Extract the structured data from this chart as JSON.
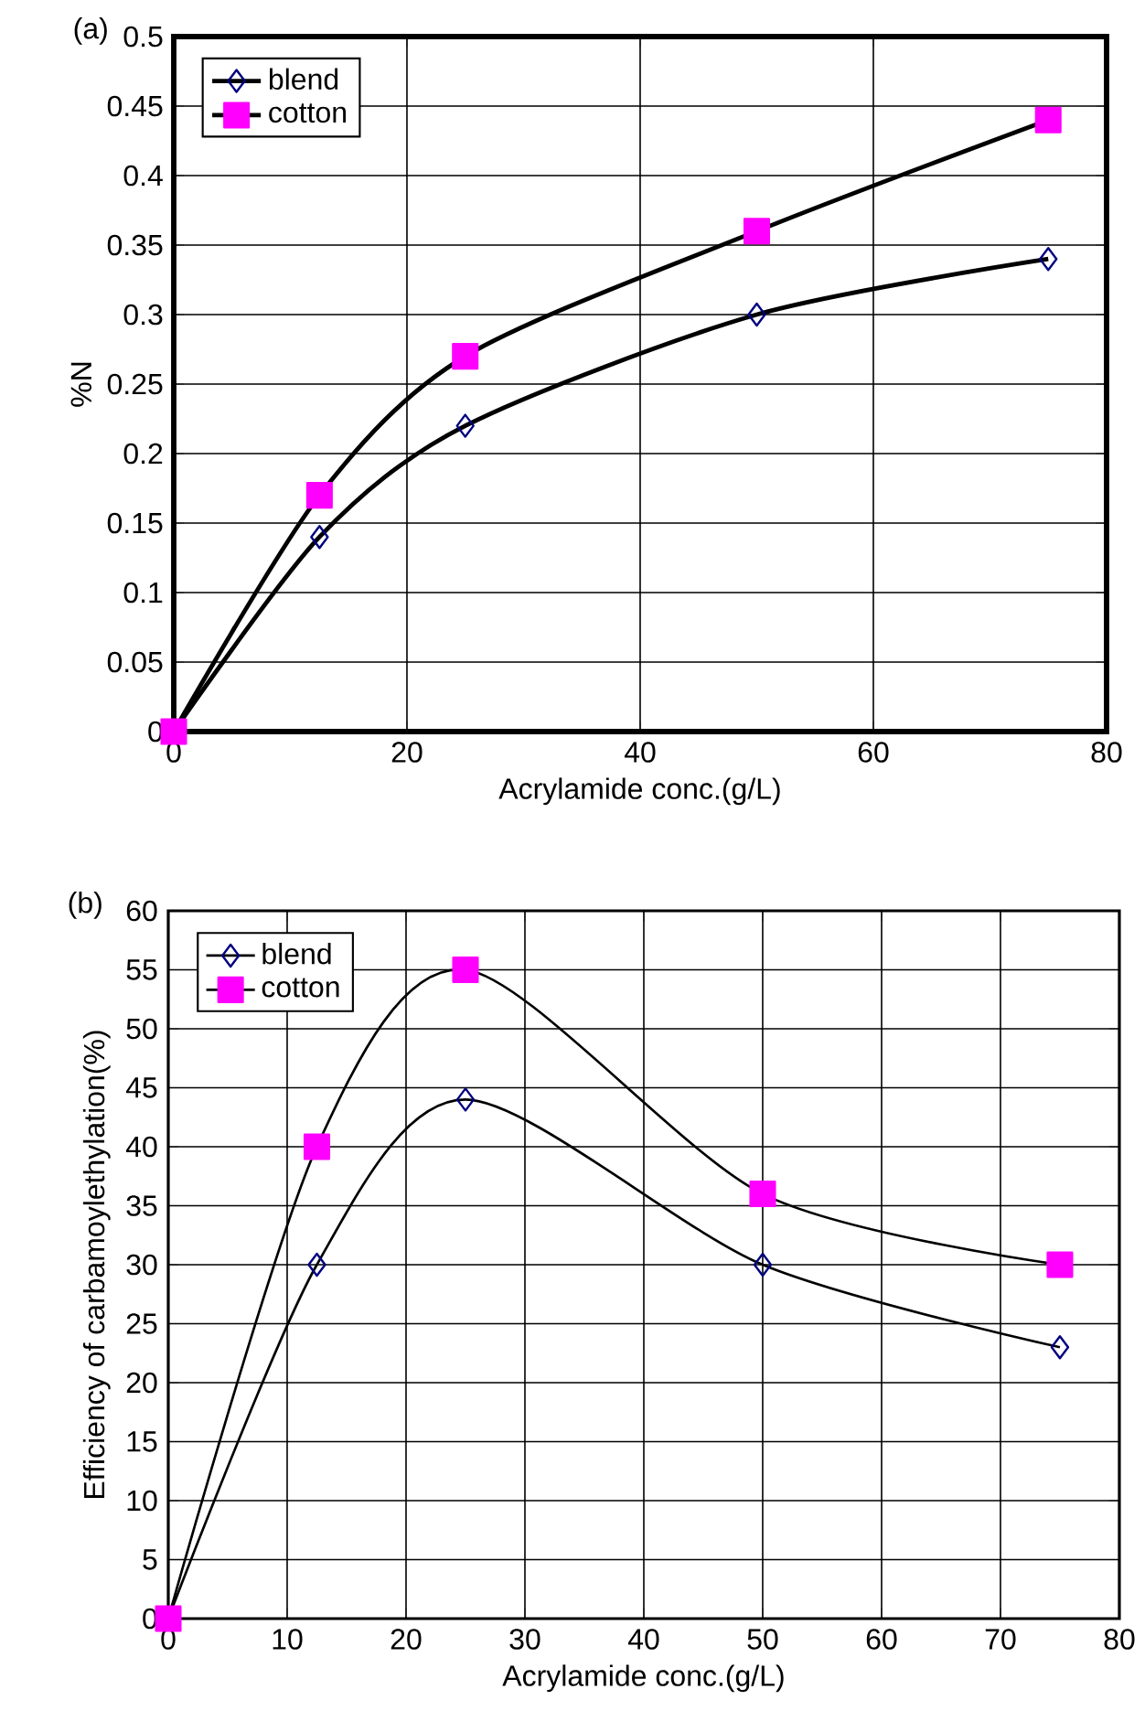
{
  "chart_data": [
    {
      "type": "line",
      "title": "(a)",
      "xlabel": "Acrylamide conc.(g/L)",
      "ylabel": "%N",
      "x": [
        0,
        12.5,
        25,
        50,
        75
      ],
      "series": [
        {
          "name": "blend",
          "color": "#000080",
          "marker": "diamond",
          "values": [
            0,
            0.14,
            0.22,
            0.3,
            0.34
          ]
        },
        {
          "name": "cotton",
          "color": "#ff00ff",
          "marker": "square",
          "values": [
            0,
            0.17,
            0.27,
            0.36,
            0.44
          ]
        }
      ],
      "xlim": [
        0,
        80
      ],
      "xticks": [
        0,
        20,
        40,
        60,
        80
      ],
      "ylim": [
        0,
        0.5
      ],
      "yticks": [
        0,
        0.05,
        0.1,
        0.15,
        0.2,
        0.25,
        0.3,
        0.35,
        0.4,
        0.45,
        0.5
      ],
      "grid": true,
      "legend": "top left"
    },
    {
      "type": "line",
      "title": "(b)",
      "xlabel": "Acrylamide conc.(g/L)",
      "ylabel": "Efficiency of carbamoylethylation(%)",
      "x": [
        0,
        12.5,
        25,
        50,
        75
      ],
      "series": [
        {
          "name": "blend",
          "color": "#000080",
          "marker": "diamond",
          "values": [
            0,
            30,
            44,
            30,
            23
          ]
        },
        {
          "name": "cotton",
          "color": "#ff00ff",
          "marker": "square",
          "values": [
            0,
            40,
            55,
            36,
            30
          ]
        }
      ],
      "xlim": [
        0,
        80
      ],
      "xticks": [
        0,
        10,
        20,
        30,
        40,
        50,
        60,
        70,
        80
      ],
      "ylim": [
        0,
        60
      ],
      "yticks": [
        0,
        5,
        10,
        15,
        20,
        25,
        30,
        35,
        40,
        45,
        50,
        55,
        60
      ],
      "grid": true,
      "legend": "top left"
    }
  ]
}
